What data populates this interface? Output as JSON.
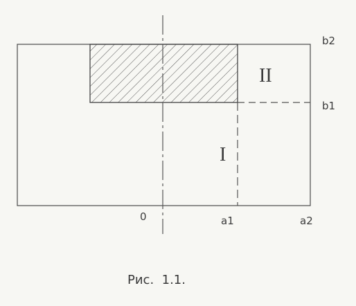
{
  "diagram": {
    "labels": {
      "b2": "b2",
      "b1": "b1",
      "zero": "0",
      "a1": "a1",
      "a2": "a2"
    },
    "regions": {
      "region_one": "I",
      "region_two": "II"
    },
    "caption": "Рис.  1.1.",
    "colors": {
      "ink": "#3a3a3a",
      "paper": "#f7f7f3"
    }
  }
}
